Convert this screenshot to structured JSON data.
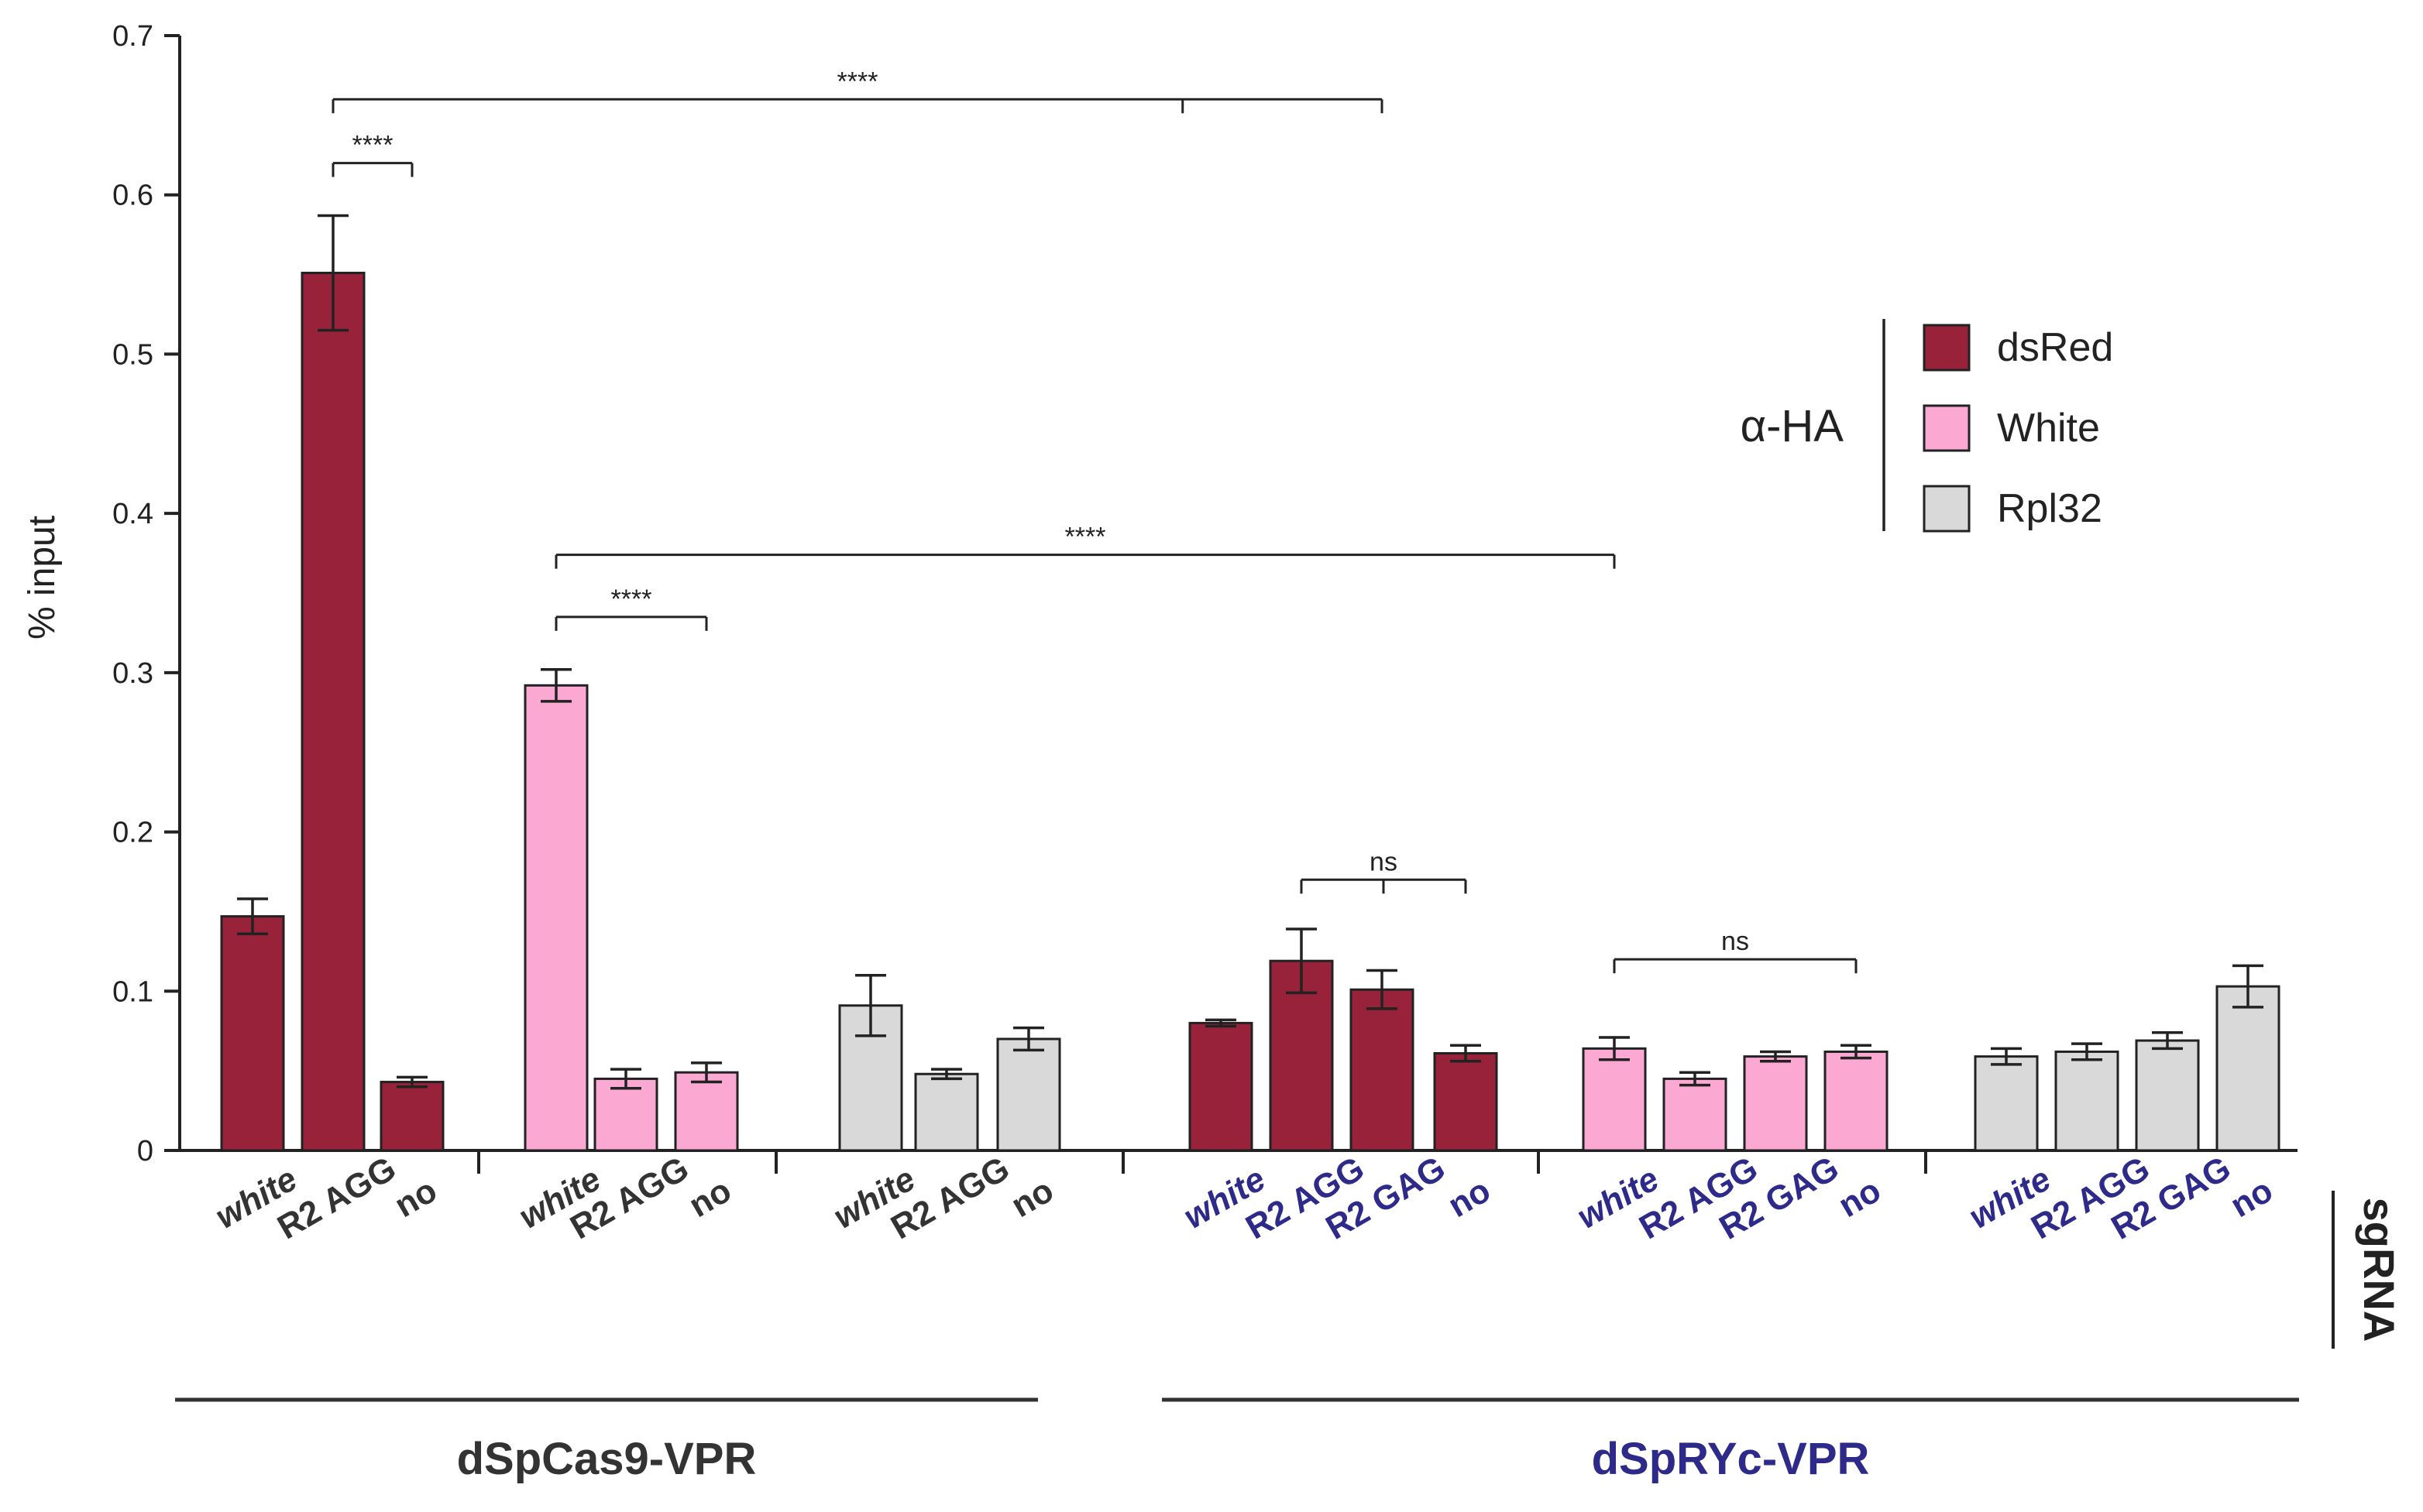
{
  "chart_data": {
    "type": "bar",
    "ylabel": "% input",
    "ylim": [
      0,
      0.7
    ],
    "yticks": [
      0,
      0.1,
      0.2,
      0.3,
      0.4,
      0.5,
      0.6,
      0.7
    ],
    "ytick_labels": [
      "0",
      "0.1",
      "0.2",
      "0.3",
      "0.4",
      "0.5",
      "0.6",
      "0.7"
    ],
    "colors": {
      "dsRed": "#97223A",
      "White": "#FBA8D3",
      "Rpl32": "#D9D9D9",
      "navy": "#2E2A8A",
      "dark": "#333333"
    },
    "legend": {
      "title": "α-HA",
      "entries": [
        {
          "name": "dsRed",
          "color": "#97223A"
        },
        {
          "name": "White",
          "color": "#FBA8D3"
        },
        {
          "name": "Rpl32",
          "color": "#D9D9D9"
        }
      ]
    },
    "side_label": "sgRNA",
    "groups": [
      {
        "label": "dSpCas9-VPR",
        "color": "#333333"
      },
      {
        "label": "dSpRYc-VPR",
        "color": "#2E2A8A"
      }
    ],
    "bars": [
      {
        "sgrna": "white",
        "target": "dsRed",
        "value": 0.147,
        "err": 0.011,
        "group": 0
      },
      {
        "sgrna": "R2 AGG",
        "target": "dsRed",
        "value": 0.551,
        "err": 0.036,
        "group": 0
      },
      {
        "sgrna": "no",
        "target": "dsRed",
        "value": 0.043,
        "err": 0.003,
        "group": 0
      },
      {
        "sgrna": "white",
        "target": "White",
        "value": 0.292,
        "err": 0.01,
        "group": 0
      },
      {
        "sgrna": "R2 AGG",
        "target": "White",
        "value": 0.045,
        "err": 0.006,
        "group": 0
      },
      {
        "sgrna": "no",
        "target": "White",
        "value": 0.049,
        "err": 0.006,
        "group": 0
      },
      {
        "sgrna": "white",
        "target": "Rpl32",
        "value": 0.091,
        "err": 0.019,
        "group": 0
      },
      {
        "sgrna": "R2 AGG",
        "target": "Rpl32",
        "value": 0.048,
        "err": 0.003,
        "group": 0
      },
      {
        "sgrna": "no",
        "target": "Rpl32",
        "value": 0.07,
        "err": 0.007,
        "group": 0
      },
      {
        "sgrna": "white",
        "target": "dsRed",
        "value": 0.08,
        "err": 0.002,
        "group": 1
      },
      {
        "sgrna": "R2 AGG",
        "target": "dsRed",
        "value": 0.119,
        "err": 0.02,
        "group": 1
      },
      {
        "sgrna": "R2 GAG",
        "target": "dsRed",
        "value": 0.101,
        "err": 0.012,
        "group": 1
      },
      {
        "sgrna": "no",
        "target": "dsRed",
        "value": 0.061,
        "err": 0.005,
        "group": 1
      },
      {
        "sgrna": "white",
        "target": "White",
        "value": 0.064,
        "err": 0.007,
        "group": 1
      },
      {
        "sgrna": "R2 AGG",
        "target": "White",
        "value": 0.045,
        "err": 0.004,
        "group": 1
      },
      {
        "sgrna": "R2 GAG",
        "target": "White",
        "value": 0.059,
        "err": 0.003,
        "group": 1
      },
      {
        "sgrna": "no",
        "target": "White",
        "value": 0.062,
        "err": 0.004,
        "group": 1
      },
      {
        "sgrna": "white",
        "target": "Rpl32",
        "value": 0.059,
        "err": 0.005,
        "group": 1
      },
      {
        "sgrna": "R2 AGG",
        "target": "Rpl32",
        "value": 0.062,
        "err": 0.005,
        "group": 1
      },
      {
        "sgrna": "R2 GAG",
        "target": "Rpl32",
        "value": 0.069,
        "err": 0.005,
        "group": 1
      },
      {
        "sgrna": "no",
        "target": "Rpl32",
        "value": 0.103,
        "err": 0.013,
        "group": 1
      }
    ],
    "annotations": [
      {
        "label": "****",
        "from_bar": 1,
        "to_bar": 2,
        "level": 0.62
      },
      {
        "label": "****",
        "from_bar": 1,
        "to_bar": 11,
        "level": 0.66,
        "split": 0.81
      },
      {
        "label": "****",
        "from_bar": 3,
        "to_bar": 5,
        "level": 0.335
      },
      {
        "label": "****",
        "from_bar": 3,
        "to_bar": 13,
        "level": 0.374
      },
      {
        "label": "ns",
        "from_bar": 10,
        "to_bar": 12,
        "level": 0.17,
        "split": 0.5
      },
      {
        "label": "ns",
        "from_bar": 13,
        "to_bar": 16,
        "level": 0.12
      }
    ]
  }
}
